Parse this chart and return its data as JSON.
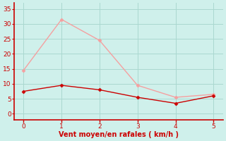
{
  "x": [
    0,
    1,
    2,
    3,
    4,
    5
  ],
  "y_moyen": [
    7.5,
    9.5,
    8.0,
    5.5,
    3.5,
    6.0
  ],
  "y_rafales": [
    14.5,
    31.5,
    24.5,
    9.5,
    5.5,
    6.5
  ],
  "line_color_moyen": "#cc0000",
  "line_color_rafales": "#f5a0a0",
  "marker_color_moyen": "#cc0000",
  "marker_color_rafales": "#f5a0a0",
  "xlabel": "Vent moyen/en rafales ( km/h )",
  "ylim": [
    -2,
    37
  ],
  "xlim": [
    -0.25,
    5.25
  ],
  "yticks": [
    0,
    5,
    10,
    15,
    20,
    25,
    30,
    35
  ],
  "xticks": [
    0,
    1,
    2,
    3,
    4,
    5
  ],
  "bg_color": "#cff0eb",
  "grid_color": "#aad8d0",
  "xlabel_color": "#cc0000",
  "tick_color": "#cc0000",
  "axis_color": "#cc0000",
  "spine_color": "#888888"
}
